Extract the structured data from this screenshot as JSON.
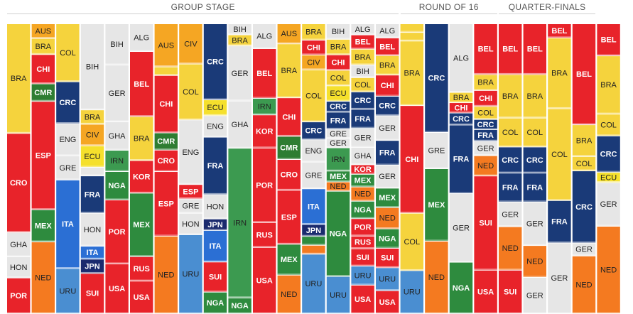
{
  "stages": [
    {
      "label": "GROUP STAGE",
      "col_start": 0,
      "col_end": 15
    },
    {
      "label": "ROUND OF 16",
      "col_start": 16,
      "col_end": 19
    },
    {
      "label": "QUARTER-FINALS",
      "col_start": 20,
      "col_end": 23
    }
  ],
  "team_colors": {
    "BRA": "#f5d33d",
    "AUS": "#f5a623",
    "CHI": "#e8232a",
    "CMR": "#2e7d32",
    "CRO": "#e8232a",
    "ESP": "#e8232a",
    "GHA": "#e6e6e6",
    "HON": "#e6e6e6",
    "MEX": "#2e8b3e",
    "NED": "#f47a20",
    "POR": "#e8232a",
    "COL": "#f5d33d",
    "CRC": "#1a3a78",
    "ENG": "#e6e6e6",
    "GRE": "#e6e6e6",
    "ITA": "#2b6fd4",
    "URU": "#4a8ed1",
    "BIH": "#e6e6e6",
    "CIV": "#f5a623",
    "ECU": "#f5e02c",
    "FRA": "#1a3a78",
    "JPN": "#1a2a6e",
    "SUI": "#e8232a",
    "GER": "#e6e6e6",
    "IRN": "#3c9a50",
    "NGA": "#2e8b3e",
    "RUS": "#e8232a",
    "USA": "#e8232a",
    "ALG": "#e6e6e6",
    "BEL": "#e8232a",
    "KOR": "#e8232a"
  },
  "chart_data": {
    "type": "area",
    "title": "",
    "xlabel": "",
    "ylabel": "",
    "columns": [
      {
        "segments": [
          {
            "team": "BRA",
            "value": 135
          },
          {
            "team": "CRO",
            "value": 122
          },
          {
            "team": "GHA",
            "value": 30
          },
          {
            "team": "HON",
            "value": 26
          },
          {
            "team": "POR",
            "value": 44
          }
        ]
      },
      {
        "segments": [
          {
            "team": "AUS",
            "value": 20
          },
          {
            "team": "BRA",
            "value": 22
          },
          {
            "team": "CHI",
            "value": 40
          },
          {
            "team": "CMR",
            "value": 24
          },
          {
            "team": "ESP",
            "value": 148
          },
          {
            "team": "MEX",
            "value": 44
          },
          {
            "team": "NED",
            "value": 98
          }
        ]
      },
      {
        "segments": [
          {
            "team": "COL",
            "value": 72
          },
          {
            "team": "CRC",
            "value": 52
          },
          {
            "team": "ENG",
            "value": 40
          },
          {
            "team": "GRE",
            "value": 30
          },
          {
            "team": "ITA",
            "value": 110
          },
          {
            "team": "URU",
            "value": 56
          }
        ]
      },
      {
        "segments": [
          {
            "team": "BIH",
            "value": 120
          },
          {
            "team": "BRA",
            "value": 20
          },
          {
            "team": "CIV",
            "value": 30
          },
          {
            "team": "ECU",
            "value": 30
          },
          {
            "team": "ENG",
            "value": 12
          },
          {
            "team": "FRA",
            "value": 52
          },
          {
            "team": "HON",
            "value": 46
          },
          {
            "team": "ITA",
            "value": 18
          },
          {
            "team": "JPN",
            "value": 20
          },
          {
            "team": "SUI",
            "value": 56
          }
        ]
      },
      {
        "segments": [
          {
            "team": "BIH",
            "value": 58
          },
          {
            "team": "GER",
            "value": 80
          },
          {
            "team": "GHA",
            "value": 40
          },
          {
            "team": "IRN",
            "value": 30
          },
          {
            "team": "NGA",
            "value": 40
          },
          {
            "team": "POR",
            "value": 90
          },
          {
            "team": "USA",
            "value": 70
          }
        ]
      },
      {
        "segments": [
          {
            "team": "ALG",
            "value": 34
          },
          {
            "team": "BEL",
            "value": 80
          },
          {
            "team": "BRA",
            "value": 54
          },
          {
            "team": "KOR",
            "value": 40
          },
          {
            "team": "MEX",
            "value": 78
          },
          {
            "team": "RUS",
            "value": 30
          },
          {
            "team": "USA",
            "value": 40
          }
        ]
      },
      {
        "segments": [
          {
            "team": "AUS",
            "value": 60
          },
          {
            "team": "BRA",
            "value": 12
          },
          {
            "team": "CHI",
            "value": 80
          },
          {
            "team": "CMR",
            "value": 24
          },
          {
            "team": "CRO",
            "value": 30
          },
          {
            "team": "ESP",
            "value": 90
          },
          {
            "team": "NED",
            "value": 108
          }
        ]
      },
      {
        "segments": [
          {
            "team": "CIV",
            "value": 56
          },
          {
            "team": "COL",
            "value": 78
          },
          {
            "team": "ENG",
            "value": 90
          },
          {
            "team": "ESP",
            "value": 20
          },
          {
            "team": "GRE",
            "value": 20
          },
          {
            "team": "HON",
            "value": 30
          },
          {
            "team": "URU",
            "value": 110
          }
        ]
      },
      {
        "segments": [
          {
            "team": "CRC",
            "value": 106
          },
          {
            "team": "ECU",
            "value": 22
          },
          {
            "team": "ENG",
            "value": 30
          },
          {
            "team": "FRA",
            "value": 80
          },
          {
            "team": "HON",
            "value": 34
          },
          {
            "team": "JPN",
            "value": 16
          },
          {
            "team": "ITA",
            "value": 44
          },
          {
            "team": "SUI",
            "value": 42
          },
          {
            "team": "NGA",
            "value": 30
          }
        ]
      },
      {
        "segments": [
          {
            "team": "BIH",
            "value": 14
          },
          {
            "team": "BRA",
            "value": 14
          },
          {
            "team": "GER",
            "value": 70
          },
          {
            "team": "GHA",
            "value": 60
          },
          {
            "team": "IRN",
            "value": 190
          },
          {
            "team": "NGA",
            "value": 20
          }
        ]
      },
      {
        "segments": [
          {
            "team": "ALG",
            "value": 30
          },
          {
            "team": "BEL",
            "value": 60
          },
          {
            "team": "IRN",
            "value": 20
          },
          {
            "team": "KOR",
            "value": 40
          },
          {
            "team": "POR",
            "value": 90
          },
          {
            "team": "RUS",
            "value": 30
          },
          {
            "team": "USA",
            "value": 80
          }
        ]
      },
      {
        "segments": [
          {
            "team": "AUS",
            "value": 26
          },
          {
            "team": "BRA",
            "value": 70
          },
          {
            "team": "CHI",
            "value": 50
          },
          {
            "team": "CMR",
            "value": 30
          },
          {
            "team": "CRO",
            "value": 40
          },
          {
            "team": "ESP",
            "value": 70
          },
          {
            "team": "MEX",
            "value": 40
          },
          {
            "team": "NED",
            "value": 50
          }
        ]
      },
      {
        "segments": [
          {
            "team": "BRA",
            "value": 22
          },
          {
            "team": "CHI",
            "value": 20
          },
          {
            "team": "CIV",
            "value": 20
          },
          {
            "team": "COL",
            "value": 70
          },
          {
            "team": "CRC",
            "value": 24
          },
          {
            "team": "ENG",
            "value": 30
          },
          {
            "team": "GRE",
            "value": 36
          },
          {
            "team": "ITA",
            "value": 48
          },
          {
            "team": "JPN",
            "value": 16
          },
          {
            "team": "MEX",
            "value": 12
          },
          {
            "team": "NED",
            "value": 12
          },
          {
            "team": "URU",
            "value": 80
          }
        ]
      },
      {
        "segments": [
          {
            "team": "BIH",
            "value": 20
          },
          {
            "team": "BRA",
            "value": 20
          },
          {
            "team": "CHI",
            "value": 20
          },
          {
            "team": "COL",
            "value": 20
          },
          {
            "team": "ECU",
            "value": 20
          },
          {
            "team": "CRC",
            "value": 14
          },
          {
            "team": "FRA",
            "value": 22
          },
          {
            "team": "GRE",
            "value": 12
          },
          {
            "team": "GER",
            "value": 12
          },
          {
            "team": "IRN",
            "value": 30
          },
          {
            "team": "MEX",
            "value": 14
          },
          {
            "team": "NED",
            "value": 12
          },
          {
            "team": "NGA",
            "value": 110
          },
          {
            "team": "URU",
            "value": 48
          }
        ]
      },
      {
        "segments": [
          {
            "team": "ALG",
            "value": 14
          },
          {
            "team": "BEL",
            "value": 18
          },
          {
            "team": "BRA",
            "value": 20
          },
          {
            "team": "BIH",
            "value": 16
          },
          {
            "team": "COL",
            "value": 18
          },
          {
            "team": "CRC",
            "value": 22
          },
          {
            "team": "FRA",
            "value": 24
          },
          {
            "team": "GER",
            "value": 24
          },
          {
            "team": "GHA",
            "value": 22
          },
          {
            "team": "KOR",
            "value": 12
          },
          {
            "team": "MEX",
            "value": 16
          },
          {
            "team": "NED",
            "value": 18
          },
          {
            "team": "NGA",
            "value": 22
          },
          {
            "team": "POR",
            "value": 22
          },
          {
            "team": "RUS",
            "value": 16
          },
          {
            "team": "SUI",
            "value": 22
          },
          {
            "team": "URU",
            "value": 24
          },
          {
            "team": "USA",
            "value": 36
          }
        ]
      },
      {
        "segments": [
          {
            "team": "ALG",
            "value": 16
          },
          {
            "team": "BEL",
            "value": 20
          },
          {
            "team": "BRA",
            "value": 22
          },
          {
            "team": "CHI",
            "value": 24
          },
          {
            "team": "CRC",
            "value": 22
          },
          {
            "team": "GER",
            "value": 28
          },
          {
            "team": "FRA",
            "value": 28
          },
          {
            "team": "GER",
            "value": 26
          },
          {
            "team": "MEX",
            "value": 22
          },
          {
            "team": "NED",
            "value": 24
          },
          {
            "team": "NGA",
            "value": 22
          },
          {
            "team": "SUI",
            "value": 22
          },
          {
            "team": "URU",
            "value": 26
          },
          {
            "team": "USA",
            "value": 26
          }
        ]
      },
      {
        "segments": [
          {
            "team": "BRA",
            "value": 12
          },
          {
            "team": "COL",
            "value": 12
          },
          {
            "team": "BRA",
            "value": 90
          },
          {
            "team": "CHI",
            "value": 150
          },
          {
            "team": "COL",
            "value": 80
          },
          {
            "team": "URU",
            "value": 60
          }
        ]
      },
      {
        "segments": [
          {
            "team": "CRC",
            "value": 150
          },
          {
            "team": "GRE",
            "value": 50
          },
          {
            "team": "MEX",
            "value": 100
          },
          {
            "team": "NED",
            "value": 100
          }
        ]
      },
      {
        "segments": [
          {
            "team": "ALG",
            "value": 80
          },
          {
            "team": "BRA",
            "value": 12
          },
          {
            "team": "CHI",
            "value": 12
          },
          {
            "team": "CRC",
            "value": 14
          },
          {
            "team": "FRA",
            "value": 80
          },
          {
            "team": "GER",
            "value": 80
          },
          {
            "team": "NGA",
            "value": 60
          }
        ]
      },
      {
        "segments": [
          {
            "team": "BEL",
            "value": 70
          },
          {
            "team": "BRA",
            "value": 22
          },
          {
            "team": "CHI",
            "value": 22
          },
          {
            "team": "COL",
            "value": 18
          },
          {
            "team": "CRC",
            "value": 14
          },
          {
            "team": "FRA",
            "value": 16
          },
          {
            "team": "GER",
            "value": 20
          },
          {
            "team": "NED",
            "value": 28
          },
          {
            "team": "SUI",
            "value": 130
          },
          {
            "team": "USA",
            "value": 60
          }
        ]
      },
      {
        "segments": [
          {
            "team": "BEL",
            "value": 70
          },
          {
            "team": "BRA",
            "value": 60
          },
          {
            "team": "COL",
            "value": 40
          },
          {
            "team": "CRC",
            "value": 36
          },
          {
            "team": "FRA",
            "value": 40
          },
          {
            "team": "GER",
            "value": 34
          },
          {
            "team": "NED",
            "value": 60
          },
          {
            "team": "SUI",
            "value": 60
          }
        ]
      },
      {
        "segments": [
          {
            "team": "BEL",
            "value": 70
          },
          {
            "team": "BRA",
            "value": 60
          },
          {
            "team": "COL",
            "value": 40
          },
          {
            "team": "CRC",
            "value": 36
          },
          {
            "team": "FRA",
            "value": 40
          },
          {
            "team": "GER",
            "value": 60
          },
          {
            "team": "NED",
            "value": 44
          },
          {
            "team": "GER",
            "value": 50
          }
        ]
      },
      {
        "segments": [
          {
            "team": "BEL",
            "value": 20
          },
          {
            "team": "BRA",
            "value": 100
          },
          {
            "team": "COL",
            "value": 130
          },
          {
            "team": "FRA",
            "value": 60
          },
          {
            "team": "GER",
            "value": 100
          }
        ]
      },
      {
        "segments": [
          {
            "team": "BEL",
            "value": 140
          },
          {
            "team": "BRA",
            "value": 44
          },
          {
            "team": "COL",
            "value": 20
          },
          {
            "team": "CRC",
            "value": 100
          },
          {
            "team": "GER",
            "value": 18
          },
          {
            "team": "NED",
            "value": 80
          }
        ]
      },
      {
        "segments": [
          {
            "team": "BEL",
            "value": 44
          },
          {
            "team": "BRA",
            "value": 80
          },
          {
            "team": "COL",
            "value": 30
          },
          {
            "team": "CRC",
            "value": 50
          },
          {
            "team": "ECU",
            "value": 14
          },
          {
            "team": "GER",
            "value": 60
          },
          {
            "team": "NED",
            "value": 120
          }
        ]
      }
    ]
  }
}
